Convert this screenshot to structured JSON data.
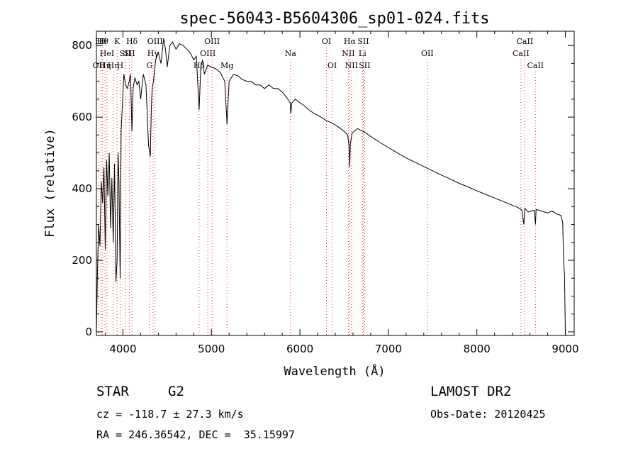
{
  "chart_data": {
    "type": "line",
    "title": "spec-56043-B5604306_sp01-024.fits",
    "xlabel": "Wavelength (Å)",
    "ylabel": "Flux (relative)",
    "xlim": [
      3700,
      9100
    ],
    "ylim": [
      -10,
      840
    ],
    "xticks": [
      4000,
      5000,
      6000,
      7000,
      8000,
      9000
    ],
    "yticks": [
      0,
      200,
      400,
      600,
      800
    ],
    "grid": false,
    "series": [
      {
        "color": "#000000",
        "x": [
          3700,
          3712,
          3725,
          3740,
          3755,
          3770,
          3785,
          3800,
          3815,
          3830,
          3845,
          3860,
          3875,
          3890,
          3905,
          3920,
          3934,
          3945,
          3955,
          3968,
          3980,
          3995,
          4010,
          4030,
          4050,
          4070,
          4085,
          4101,
          4115,
          4135,
          4160,
          4180,
          4200,
          4230,
          4260,
          4290,
          4310,
          4320,
          4330,
          4345,
          4370,
          4400,
          4430,
          4460,
          4480,
          4500,
          4530,
          4560,
          4600,
          4640,
          4680,
          4720,
          4760,
          4800,
          4830,
          4861,
          4880,
          4900,
          4920,
          4957,
          5000,
          5050,
          5100,
          5150,
          5170,
          5176,
          5184,
          5200,
          5250,
          5300,
          5350,
          5400,
          5450,
          5500,
          5550,
          5600,
          5650,
          5700,
          5750,
          5800,
          5850,
          5890,
          5896,
          5910,
          5950,
          6000,
          6050,
          6100,
          6150,
          6200,
          6250,
          6300,
          6350,
          6400,
          6450,
          6500,
          6540,
          6555,
          6563,
          6570,
          6590,
          6650,
          6700,
          6750,
          6800,
          6850,
          6900,
          7000,
          7100,
          7200,
          7300,
          7400,
          7500,
          7600,
          7700,
          7800,
          7900,
          8000,
          8100,
          8200,
          8300,
          8400,
          8450,
          8480,
          8498,
          8510,
          8530,
          8542,
          8550,
          8580,
          8620,
          8650,
          8662,
          8670,
          8700,
          8750,
          8800,
          8850,
          8900,
          8950,
          8970,
          8980,
          8990,
          9000
        ],
        "values": [
          0,
          170,
          300,
          240,
          420,
          360,
          460,
          230,
          480,
          380,
          500,
          290,
          430,
          250,
          470,
          140,
          200,
          500,
          420,
          150,
          560,
          640,
          720,
          690,
          680,
          700,
          720,
          560,
          680,
          710,
          690,
          700,
          650,
          720,
          690,
          520,
          490,
          620,
          680,
          700,
          760,
          780,
          750,
          820,
          790,
          740,
          800,
          810,
          790,
          805,
          800,
          790,
          780,
          760,
          770,
          620,
          740,
          760,
          720,
          745,
          740,
          735,
          725,
          700,
          610,
          580,
          620,
          700,
          720,
          715,
          705,
          700,
          700,
          690,
          690,
          680,
          690,
          680,
          680,
          670,
          655,
          640,
          610,
          640,
          650,
          640,
          632,
          620,
          612,
          605,
          598,
          590,
          585,
          578,
          570,
          560,
          550,
          520,
          460,
          525,
          555,
          568,
          562,
          555,
          546,
          538,
          530,
          515,
          500,
          486,
          474,
          462,
          450,
          438,
          427,
          415,
          405,
          394,
          384,
          374,
          364,
          354,
          349,
          345,
          342,
          340,
          300,
          345,
          343,
          335,
          338,
          340,
          300,
          342,
          340,
          336,
          332,
          338,
          330,
          325,
          305,
          200,
          160,
          0
        ]
      }
    ],
    "line_markers": [
      {
        "wl": 3727,
        "label": "OII",
        "row": 3
      },
      {
        "wl": 3750,
        "label": "Hθ",
        "row": 1
      },
      {
        "wl": 3771,
        "label": "Hθ",
        "row": 1
      },
      {
        "wl": 3798,
        "label": "Hη",
        "row": 3
      },
      {
        "wl": 3820,
        "label": "HeI",
        "row": 2
      },
      {
        "wl": 3890,
        "label": "Hη",
        "row": 3
      },
      {
        "wl": 3934,
        "label": "K",
        "row": 1
      },
      {
        "wl": 3968,
        "label": "H",
        "row": 3
      },
      {
        "wl": 4026,
        "label": "SII",
        "row": 2
      },
      {
        "wl": 4072,
        "label": "SII",
        "row": 2
      },
      {
        "wl": 4101,
        "label": "Hδ",
        "row": 1
      },
      {
        "wl": 4300,
        "label": "G",
        "row": 3
      },
      {
        "wl": 4340,
        "label": "Hγ",
        "row": 2
      },
      {
        "wl": 4363,
        "label": "OIII",
        "row": 1
      },
      {
        "wl": 4861,
        "label": "Hβ",
        "row": 3
      },
      {
        "wl": 4959,
        "label": "OIII",
        "row": 2
      },
      {
        "wl": 5007,
        "label": "OIII",
        "row": 1
      },
      {
        "wl": 5175,
        "label": "Mg",
        "row": 3
      },
      {
        "wl": 5894,
        "label": "Na",
        "row": 2
      },
      {
        "wl": 6300,
        "label": "OI",
        "row": 1
      },
      {
        "wl": 6364,
        "label": "OI",
        "row": 3
      },
      {
        "wl": 6548,
        "label": "NII",
        "row": 2
      },
      {
        "wl": 6563,
        "label": "Hα",
        "row": 1
      },
      {
        "wl": 6583,
        "label": "NII",
        "row": 3
      },
      {
        "wl": 6707,
        "label": "Li",
        "row": 2
      },
      {
        "wl": 6716,
        "label": "SII",
        "row": 1
      },
      {
        "wl": 6731,
        "label": "SII",
        "row": 3
      },
      {
        "wl": 7440,
        "label": "OII",
        "row": 2
      },
      {
        "wl": 8498,
        "label": "CaII",
        "row": 2
      },
      {
        "wl": 8542,
        "label": "CaII",
        "row": 1
      },
      {
        "wl": 8662,
        "label": "CaII",
        "row": 3
      }
    ]
  },
  "info": {
    "object_class": "STAR",
    "subclass": "G2",
    "survey": "LAMOST DR2",
    "velocity": "cz = -118.7 ± 27.3 km/s",
    "obs_date": "Obs-Date: 20120425",
    "coords": "RA = 246.36542, DEC =  35.15997"
  }
}
